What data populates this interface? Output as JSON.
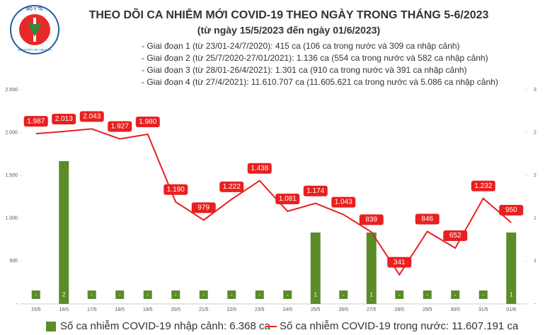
{
  "logo": {
    "top": "BỘ Y TẾ",
    "bottom": "MINISTRY OF HEALTH"
  },
  "chart_data": {
    "type": "bar-line",
    "title": "THEO DÕI CA NHIỄM MỚI COVID-19 THEO NGÀY TRONG THÁNG 5-6/2023",
    "subtitle": "(từ ngày 15/5/2023 đến ngày 01/6/2023)",
    "notes": [
      "- Giai đoạn 1 (từ 23/01-24/7/2020): 415 ca (106 ca trong nước và 309 ca nhập cảnh)",
      "- Giai đoạn 2 (từ 25/7/2020-27/01/2021): 1.136 ca (554 ca trong nước và 582 ca nhập cảnh)",
      "- Giai đoạn 3 (từ 28/01-26/4/2021): 1.301 ca (910 ca trong nước và 391 ca nhập cảnh)",
      "- Giai đoạn 4 (từ 27/4/2021): 11.610.707 ca (11.605.621 ca trong nước và 5.086 ca nhập cảnh)"
    ],
    "categories": [
      "15/5",
      "16/5",
      "17/5",
      "18/5",
      "19/5",
      "20/5",
      "21/5",
      "22/5",
      "23/5",
      "24/5",
      "25/5",
      "26/5",
      "27/5",
      "28/5",
      "29/5",
      "30/5",
      "31/5",
      "01/6"
    ],
    "series": [
      {
        "name": "Số ca nhiễm COVID-19 nhập cảnh: 6.368 ca",
        "type": "bar",
        "axis": "y2",
        "color": "#5b8c2a",
        "values": [
          0,
          2,
          0,
          0,
          0,
          0,
          0,
          0,
          0,
          0,
          1,
          0,
          1,
          0,
          0,
          0,
          0,
          1
        ],
        "value_labels": [
          "-",
          "2",
          "-",
          "-",
          "-",
          "-",
          "-",
          "-",
          "-",
          "-",
          "1",
          "-",
          "1",
          "-",
          "-",
          "-",
          "-",
          "1"
        ]
      },
      {
        "name": "Số ca nhiễm COVID-19 trong nước: 11.607.191 ca",
        "type": "line",
        "color": "#e8201f",
        "values": [
          1987,
          2013,
          2043,
          1927,
          1980,
          1190,
          979,
          1222,
          1438,
          1081,
          1174,
          1043,
          839,
          341,
          846,
          652,
          1232,
          950
        ],
        "value_labels": [
          "1.987",
          "2.013",
          "2.043",
          "1.927",
          "1.980",
          "1.190",
          "979",
          "1.222",
          "1.438",
          "1.081",
          "1.174",
          "1.043",
          "839",
          "341",
          "846",
          "652",
          "1.232",
          "950"
        ]
      }
    ],
    "ylim": [
      0,
      2500
    ],
    "yticks": [
      {
        "value": 0,
        "label": "-"
      },
      500,
      {
        "value": 1000,
        "label": "1.000"
      },
      {
        "value": 1500,
        "label": "1.500"
      },
      {
        "value": 2000,
        "label": "2.000"
      },
      {
        "value": 2500,
        "label": "2.500"
      }
    ],
    "y2lim": [
      0,
      3
    ],
    "y2ticks": [
      {
        "value": 0,
        "label": "-"
      },
      {
        "value": 0.6,
        "label": "1"
      },
      {
        "value": 1.2,
        "label": "1"
      },
      {
        "value": 1.8,
        "label": "2"
      },
      {
        "value": 2.4,
        "label": "2"
      },
      3
    ]
  }
}
